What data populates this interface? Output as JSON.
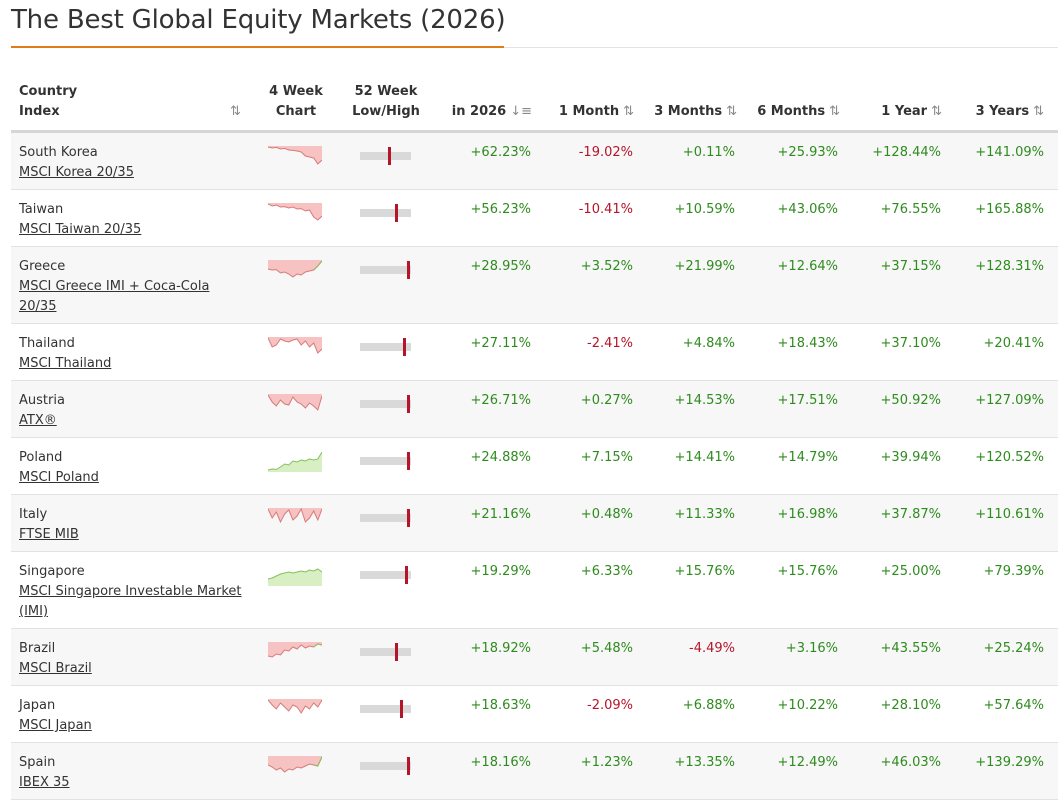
{
  "title": "The Best Global Equity Markets (2026)",
  "headers": {
    "country_line1": "Country",
    "country_line2": "Index",
    "chart_line1": "4 Week",
    "chart_line2": "Chart",
    "range_line1": "52 Week",
    "range_line2": "Low/High",
    "ytd": "in 2026",
    "m1": "1 Month",
    "m3": "3 Months",
    "m6": "6 Months",
    "y1": "1 Year",
    "y3": "3 Years"
  },
  "icons": {
    "sort": "sort-arrows-icon",
    "sort_desc": "sort-descending-icon",
    "sparkline": "sparkline-chart",
    "range": "range-indicator"
  },
  "colors": {
    "positive": "#2e8b1e",
    "negative": "#b5152b",
    "accent": "#e07b1a",
    "spark_down_fill": "#f6c2c2",
    "spark_down_line": "#d87a7a",
    "spark_up_fill": "#d8efc4",
    "spark_up_line": "#86c05a"
  },
  "rows": [
    {
      "country": "South Korea",
      "index": "MSCI Korea 20/35",
      "ytd": "+62.23%",
      "m1": "-19.02%",
      "m3": "+0.11%",
      "m6": "+25.93%",
      "y1": "+128.44%",
      "y3": "+141.09%",
      "range_pos": 0.58,
      "spark_trend": "down",
      "spark": [
        0.95,
        0.9,
        0.93,
        0.85,
        0.88,
        0.8,
        0.78,
        0.75,
        0.7,
        0.5,
        0.45,
        0.4,
        0.1,
        0.3
      ]
    },
    {
      "country": "Taiwan",
      "index": "MSCI Taiwan 20/35",
      "ytd": "+56.23%",
      "m1": "-10.41%",
      "m3": "+10.59%",
      "m6": "+43.06%",
      "y1": "+76.55%",
      "y3": "+165.88%",
      "range_pos": 0.72,
      "spark_trend": "down",
      "spark": [
        0.95,
        0.85,
        0.9,
        0.8,
        0.82,
        0.75,
        0.8,
        0.7,
        0.72,
        0.6,
        0.65,
        0.3,
        0.15,
        0.35
      ]
    },
    {
      "country": "Greece",
      "index": "MSCI Greece IMI + Coca-Cola 20/35",
      "ytd": "+28.95%",
      "m1": "+3.52%",
      "m3": "+21.99%",
      "m6": "+12.64%",
      "y1": "+37.15%",
      "y3": "+128.31%",
      "range_pos": 0.98,
      "spark_trend": "mixed",
      "spark": [
        0.55,
        0.5,
        0.52,
        0.35,
        0.4,
        0.3,
        0.15,
        0.3,
        0.25,
        0.4,
        0.45,
        0.5,
        0.7,
        0.95
      ]
    },
    {
      "country": "Thailand",
      "index": "MSCI Thailand",
      "ytd": "+27.11%",
      "m1": "-2.41%",
      "m3": "+4.84%",
      "m6": "+18.43%",
      "y1": "+37.10%",
      "y3": "+20.41%",
      "range_pos": 0.9,
      "spark_trend": "down",
      "spark": [
        0.95,
        0.5,
        0.6,
        0.9,
        0.8,
        0.75,
        0.85,
        0.9,
        0.6,
        0.8,
        0.5,
        0.7,
        0.2,
        0.4
      ]
    },
    {
      "country": "Austria",
      "index": "ATX®",
      "ytd": "+26.71%",
      "m1": "+0.27%",
      "m3": "+14.53%",
      "m6": "+17.51%",
      "y1": "+50.92%",
      "y3": "+127.09%",
      "range_pos": 0.98,
      "spark_trend": "down",
      "spark": [
        0.95,
        0.6,
        0.4,
        0.7,
        0.5,
        0.45,
        0.85,
        0.6,
        0.5,
        0.3,
        0.55,
        0.4,
        0.2,
        0.9
      ]
    },
    {
      "country": "Poland",
      "index": "MSCI Poland",
      "ytd": "+24.88%",
      "m1": "+7.15%",
      "m3": "+14.41%",
      "m6": "+14.79%",
      "y1": "+39.94%",
      "y3": "+120.52%",
      "range_pos": 0.98,
      "spark_trend": "up",
      "spark": [
        0.05,
        0.1,
        0.08,
        0.2,
        0.35,
        0.3,
        0.5,
        0.45,
        0.55,
        0.5,
        0.6,
        0.55,
        0.6,
        0.95
      ]
    },
    {
      "country": "Italy",
      "index": "FTSE MIB",
      "ytd": "+21.16%",
      "m1": "+0.48%",
      "m3": "+11.33%",
      "m6": "+16.98%",
      "y1": "+37.87%",
      "y3": "+110.61%",
      "range_pos": 0.98,
      "spark_trend": "down",
      "spark": [
        0.95,
        0.5,
        0.8,
        0.3,
        0.7,
        0.9,
        0.4,
        0.6,
        0.95,
        0.3,
        0.5,
        0.85,
        0.4,
        0.95
      ]
    },
    {
      "country": "Singapore",
      "index": "MSCI Singapore Investable Market (IMI)",
      "ytd": "+19.29%",
      "m1": "+6.33%",
      "m3": "+15.76%",
      "m6": "+15.76%",
      "y1": "+25.00%",
      "y3": "+79.39%",
      "range_pos": 0.94,
      "spark_trend": "up",
      "spark": [
        0.3,
        0.35,
        0.45,
        0.55,
        0.6,
        0.65,
        0.6,
        0.65,
        0.7,
        0.65,
        0.75,
        0.7,
        0.8,
        0.65
      ]
    },
    {
      "country": "Brazil",
      "index": "MSCI Brazil",
      "ytd": "+18.92%",
      "m1": "+5.48%",
      "m3": "-4.49%",
      "m6": "+3.16%",
      "y1": "+43.55%",
      "y3": "+25.24%",
      "range_pos": 0.72,
      "spark_trend": "mixed",
      "spark": [
        0.3,
        0.25,
        0.4,
        0.35,
        0.6,
        0.55,
        0.75,
        0.65,
        0.85,
        0.7,
        0.8,
        0.75,
        0.9,
        0.85
      ]
    },
    {
      "country": "Japan",
      "index": "MSCI Japan",
      "ytd": "+18.63%",
      "m1": "-2.09%",
      "m3": "+6.88%",
      "m6": "+10.22%",
      "y1": "+28.10%",
      "y3": "+57.64%",
      "range_pos": 0.84,
      "spark_trend": "down",
      "spark": [
        0.95,
        0.7,
        0.5,
        0.8,
        0.6,
        0.4,
        0.7,
        0.6,
        0.3,
        0.65,
        0.5,
        0.8,
        0.6,
        0.95
      ]
    },
    {
      "country": "Spain",
      "index": "IBEX 35",
      "ytd": "+18.16%",
      "m1": "+1.23%",
      "m3": "+13.35%",
      "m6": "+12.49%",
      "y1": "+46.03%",
      "y3": "+139.29%",
      "range_pos": 0.98,
      "spark_trend": "mixed",
      "spark": [
        0.55,
        0.45,
        0.3,
        0.4,
        0.2,
        0.35,
        0.3,
        0.45,
        0.4,
        0.5,
        0.6,
        0.55,
        0.5,
        0.95
      ]
    }
  ]
}
